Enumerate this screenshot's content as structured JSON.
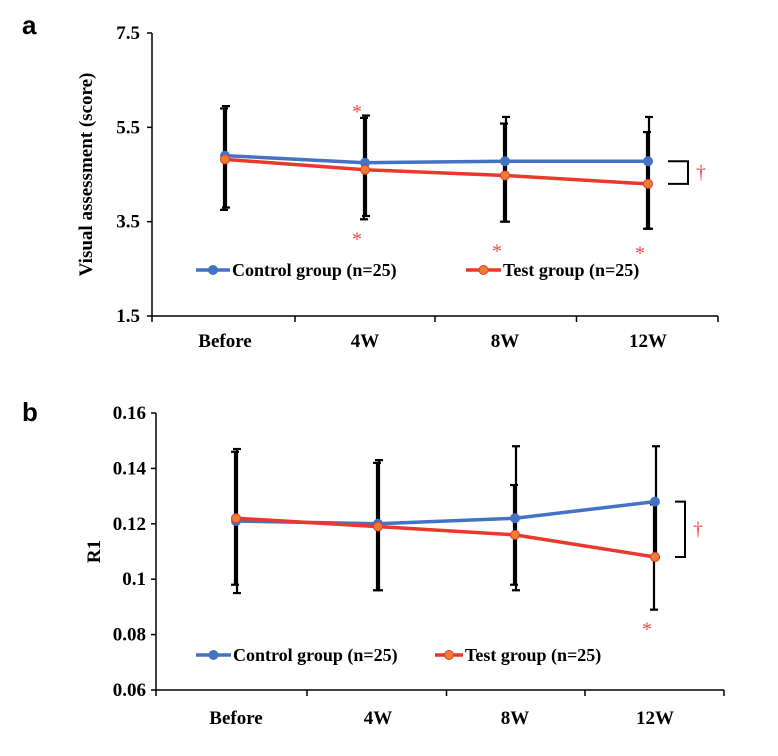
{
  "colors": {
    "control": "#4472c4",
    "test": "#e8392c",
    "marker_fill_test": "#ed7d31",
    "annotation": "#ef4a43"
  },
  "chart_data": [
    {
      "panel": "a",
      "type": "line",
      "ylabel": "Visual assessment (score)",
      "xlabel": "",
      "categories": [
        "Before",
        "4W",
        "8W",
        "12W"
      ],
      "ylim": [
        1.5,
        7.5
      ],
      "yticks": [
        "7.5",
        "5.5",
        "3.5",
        "1.5"
      ],
      "ytick_values": [
        7.5,
        5.5,
        3.5,
        1.5
      ],
      "legend_position": "bottom-center",
      "grid": false,
      "series": [
        {
          "name": "Control group (n=25)",
          "values": [
            4.9,
            4.75,
            4.78,
            4.78
          ],
          "err_low": [
            3.8,
            3.62,
            3.5,
            3.35
          ],
          "err_high": [
            5.95,
            5.75,
            5.72,
            5.72
          ]
        },
        {
          "name": "Test group (n=25)",
          "values": [
            4.82,
            4.6,
            4.48,
            4.3
          ],
          "err_low": [
            3.75,
            3.55,
            3.5,
            3.35
          ],
          "err_high": [
            5.9,
            5.7,
            5.58,
            5.4
          ]
        }
      ],
      "annotations": [
        {
          "text": "*",
          "category": "4W",
          "value": 5.95
        },
        {
          "text": "*",
          "category": "4W",
          "value": 3.25
        },
        {
          "text": "*",
          "category": "8W",
          "value": 3.0
        },
        {
          "text": "*",
          "category": "12W",
          "value": 2.95
        },
        {
          "text": "†",
          "category": "12W",
          "value": 4.55,
          "bracket": [
            4.78,
            4.3
          ]
        }
      ]
    },
    {
      "panel": "b",
      "type": "line",
      "ylabel": "R1",
      "xlabel": "",
      "categories": [
        "Before",
        "4W",
        "8W",
        "12W"
      ],
      "ylim": [
        0.06,
        0.16
      ],
      "yticks": [
        "0.16",
        "0.14",
        "0.12",
        "0.1",
        "0.08",
        "0.06"
      ],
      "ytick_values": [
        0.16,
        0.14,
        0.12,
        0.1,
        0.08,
        0.06
      ],
      "legend_position": "bottom-center",
      "grid": false,
      "series": [
        {
          "name": "Control group (n=25)",
          "values": [
            0.121,
            0.12,
            0.122,
            0.128
          ],
          "err_low": [
            0.095,
            0.096,
            0.096,
            0.108
          ],
          "err_high": [
            0.147,
            0.143,
            0.148,
            0.148
          ]
        },
        {
          "name": "Test group (n=25)",
          "values": [
            0.122,
            0.119,
            0.116,
            0.108
          ],
          "err_low": [
            0.098,
            0.096,
            0.098,
            0.089
          ],
          "err_high": [
            0.146,
            0.142,
            0.134,
            0.127
          ]
        }
      ],
      "annotations": [
        {
          "text": "*",
          "category": "12W",
          "value": 0.084
        },
        {
          "text": "†",
          "category": "12W",
          "value": 0.118,
          "bracket": [
            0.128,
            0.108
          ]
        }
      ]
    }
  ],
  "panels": {
    "a": "a",
    "b": "b"
  }
}
